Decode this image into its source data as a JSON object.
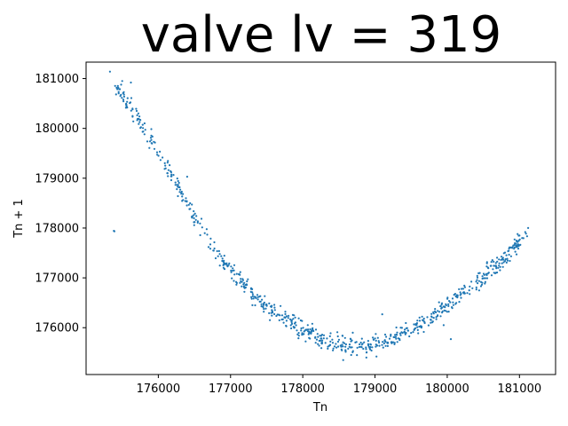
{
  "chart_data": {
    "type": "scatter",
    "title": "valve lv = 319",
    "xlabel": "Tn",
    "ylabel": "Tn + 1",
    "xlim": [
      175000,
      181500
    ],
    "ylim": [
      175060,
      181330
    ],
    "x_ticks": [
      176000,
      177000,
      178000,
      179000,
      180000,
      181000
    ],
    "y_ticks": [
      176000,
      177000,
      178000,
      179000,
      180000,
      181000
    ],
    "grid": false,
    "legend": "none",
    "marker_color": "#1f77b4",
    "trend_curve": {
      "description_points": [
        {
          "x": 175400,
          "y": 180900
        },
        {
          "x": 175600,
          "y": 180400
        },
        {
          "x": 175800,
          "y": 180000
        },
        {
          "x": 176000,
          "y": 179500
        },
        {
          "x": 176250,
          "y": 178900
        },
        {
          "x": 176500,
          "y": 178200
        },
        {
          "x": 176750,
          "y": 177650
        },
        {
          "x": 177000,
          "y": 177150
        },
        {
          "x": 177300,
          "y": 176700
        },
        {
          "x": 177600,
          "y": 176350
        },
        {
          "x": 178000,
          "y": 175950
        },
        {
          "x": 178400,
          "y": 175700
        },
        {
          "x": 178800,
          "y": 175600
        },
        {
          "x": 179200,
          "y": 175750
        },
        {
          "x": 179600,
          "y": 176050
        },
        {
          "x": 180000,
          "y": 176450
        },
        {
          "x": 180400,
          "y": 176900
        },
        {
          "x": 180800,
          "y": 177400
        },
        {
          "x": 181100,
          "y": 177900
        }
      ],
      "spread": 170
    },
    "points": [
      {
        "x": 175330,
        "y": 181140
      },
      {
        "x": 175440,
        "y": 180850
      },
      {
        "x": 175500,
        "y": 180950
      },
      {
        "x": 175620,
        "y": 180920
      },
      {
        "x": 176400,
        "y": 179030
      },
      {
        "x": 181120,
        "y": 178000
      },
      {
        "x": 181000,
        "y": 177850
      },
      {
        "x": 180900,
        "y": 177600
      },
      {
        "x": 180050,
        "y": 175770
      },
      {
        "x": 179950,
        "y": 176050
      },
      {
        "x": 179100,
        "y": 176270
      },
      {
        "x": 178560,
        "y": 175350
      },
      {
        "x": 178750,
        "y": 175450
      },
      {
        "x": 178880,
        "y": 175400
      }
    ]
  }
}
